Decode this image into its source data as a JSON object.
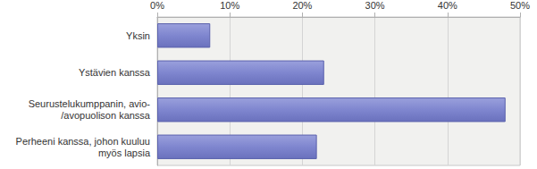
{
  "chart_data": {
    "type": "bar",
    "orientation": "horizontal",
    "categories": [
      "Yksin",
      "Ystävien kanssa",
      "Seurustelukumppanin, avio-\n/avopuolison kanssa",
      "Perheeni kanssa, johon kuuluu\nmyös lapsia"
    ],
    "values": [
      7.3,
      23.0,
      48.0,
      22.0
    ],
    "color": "#7f86cf",
    "xlim": [
      0,
      50
    ],
    "xticks": [
      {
        "value": 0,
        "label": "0%"
      },
      {
        "value": 10,
        "label": "10%"
      },
      {
        "value": 20,
        "label": "20%"
      },
      {
        "value": 30,
        "label": "30%"
      },
      {
        "value": 40,
        "label": "40%"
      },
      {
        "value": 50,
        "label": "50%"
      }
    ],
    "grid": true
  }
}
